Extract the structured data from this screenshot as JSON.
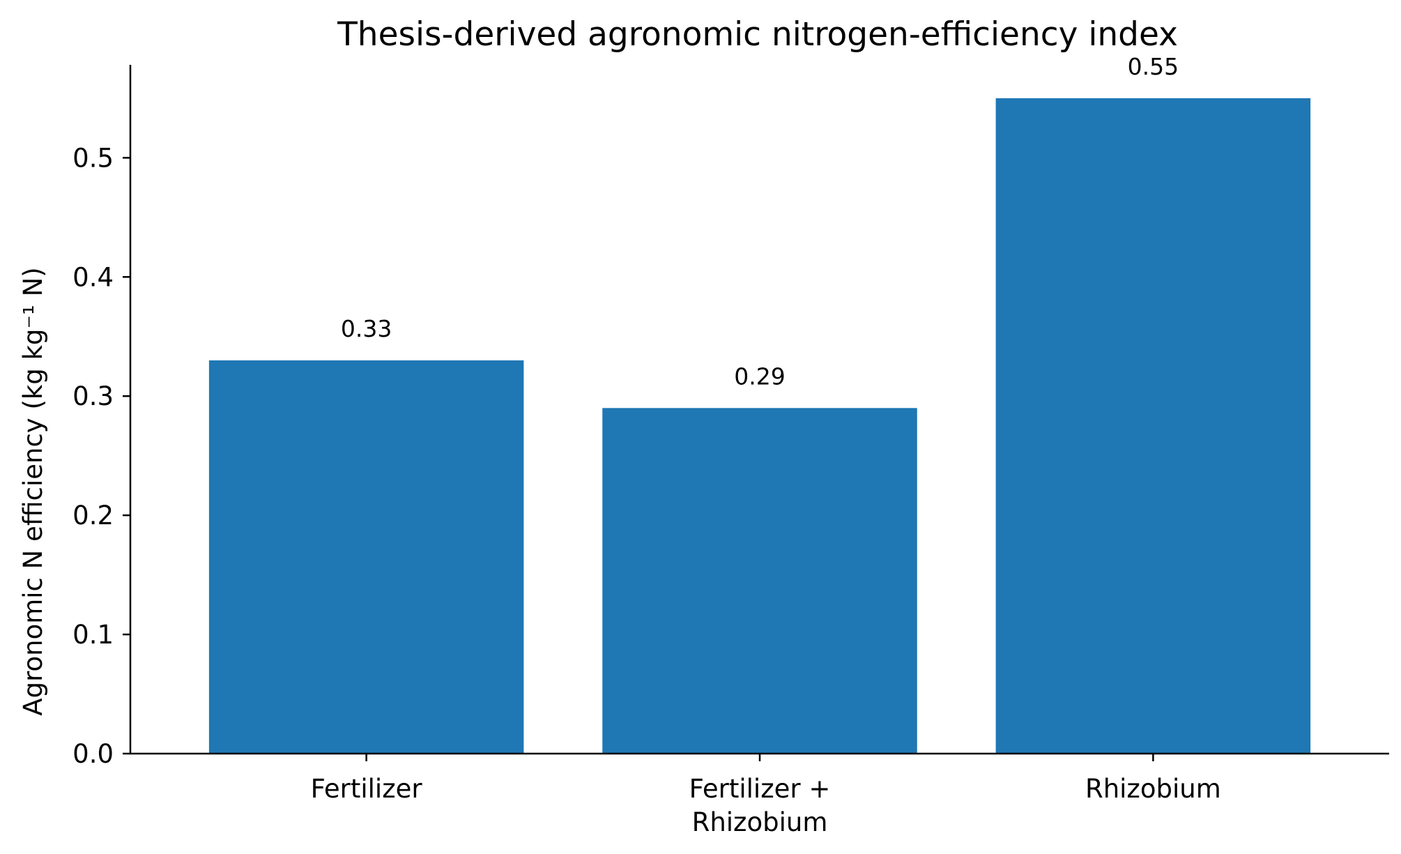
{
  "chart_data": {
    "type": "bar",
    "title": "Thesis-derived agronomic nitrogen-efficiency index",
    "xlabel": "",
    "ylabel": "Agronomic N efficiency (kg kg⁻¹ N)",
    "categories": [
      [
        "Fertilizer"
      ],
      [
        "Fertilizer +",
        "Rhizobium"
      ],
      [
        "Rhizobium"
      ]
    ],
    "values": [
      0.33,
      0.29,
      0.55
    ],
    "data_labels": [
      "0.33",
      "0.29",
      "0.55"
    ],
    "yticks": [
      0.0,
      0.1,
      0.2,
      0.3,
      0.4,
      0.5
    ],
    "ytick_labels": [
      "0.0",
      "0.1",
      "0.2",
      "0.3",
      "0.4",
      "0.5"
    ],
    "ylim": [
      0,
      0.578
    ],
    "bar_color": "#1f77b4",
    "axis_color": "#000000",
    "grid": false,
    "legend": "none"
  }
}
